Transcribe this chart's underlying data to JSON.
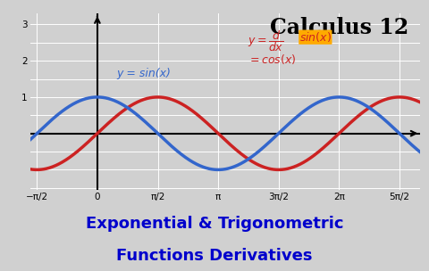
{
  "title": "Calculus 12",
  "subtitle_line1": "Exponential & Trigonometric",
  "subtitle_line2": "Functions Derivatives",
  "label_sin": "y = sin(x)",
  "sin_color": "#3366cc",
  "cos_color": "#cc2222",
  "title_color": "#000000",
  "subtitle_color": "#0000cc",
  "deriv_color": "#cc2222",
  "highlight_color": "#ffaa00",
  "bg_color": "#d0d0d0",
  "grid_color": "#ffffff",
  "xmin": -1.75,
  "xmax": 8.4,
  "ymin": -1.55,
  "ymax": 3.3,
  "xticks": [
    -1.5707963,
    0,
    1.5707963,
    3.1415926,
    4.7123889,
    6.2831853,
    7.8539816
  ],
  "xtick_labels": [
    "−π/2",
    "0",
    "π/2",
    "π",
    "3π/2",
    "2π",
    "5π/2"
  ],
  "yticks": [
    1,
    2,
    3
  ],
  "ytick_labels": [
    "1",
    "2",
    "3"
  ]
}
